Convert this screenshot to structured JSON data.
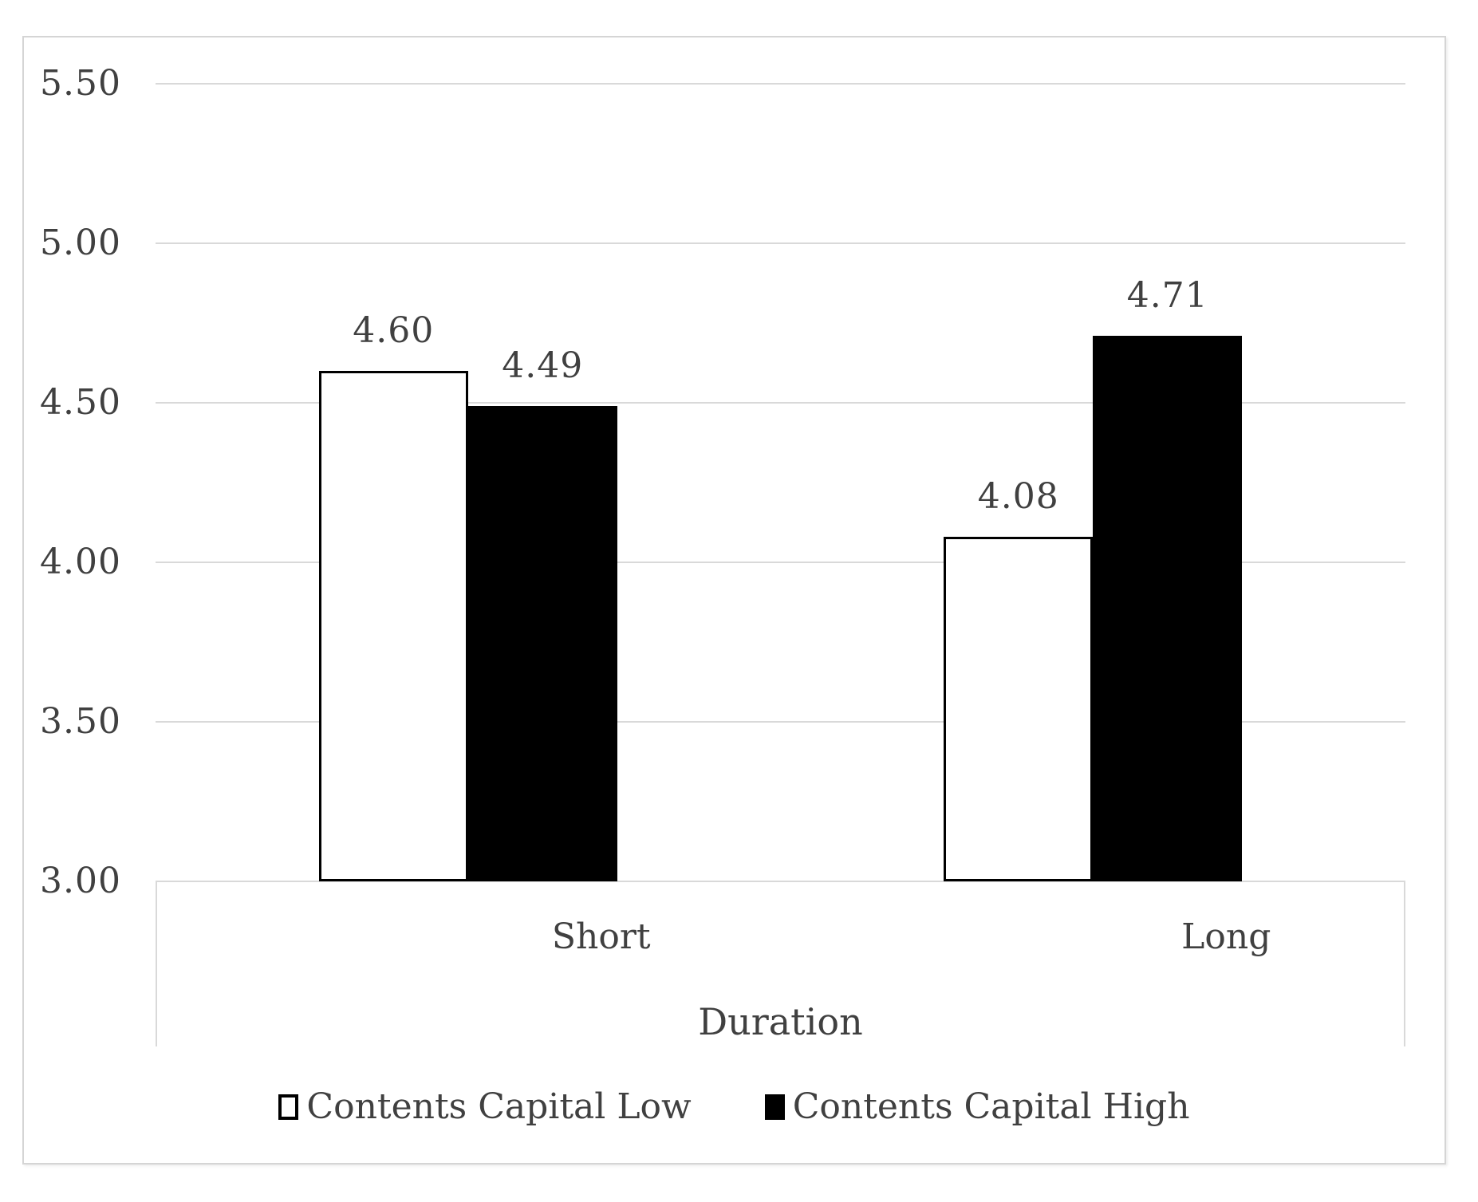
{
  "chart_data": {
    "type": "bar",
    "categories": [
      "Short",
      "Long"
    ],
    "series": [
      {
        "name": "Contents Capital Low",
        "values": [
          4.6,
          4.08
        ],
        "fill": "#ffffff",
        "border_color": "#000000"
      },
      {
        "name": "Contents Capital High",
        "values": [
          4.49,
          4.71
        ],
        "fill": "#000000",
        "border_color": "#000000"
      }
    ],
    "title": "",
    "xlabel": "Duration",
    "ylabel": "",
    "ylim": [
      3.0,
      5.5
    ],
    "ytick_step": 0.5,
    "yticks": [
      "5.50",
      "5.00",
      "4.50",
      "4.00",
      "3.50",
      "3.00"
    ],
    "grid": true,
    "data_labels": [
      "4.60",
      "4.08",
      "4.49",
      "4.71"
    ],
    "legend_position": "bottom",
    "colors": {
      "text": "#404040",
      "gridline": "#d9d9d9",
      "frame_border": "#d5d5d5",
      "bar_low_fill": "#ffffff",
      "bar_high_fill": "#000000",
      "bar_border": "#000000"
    }
  }
}
